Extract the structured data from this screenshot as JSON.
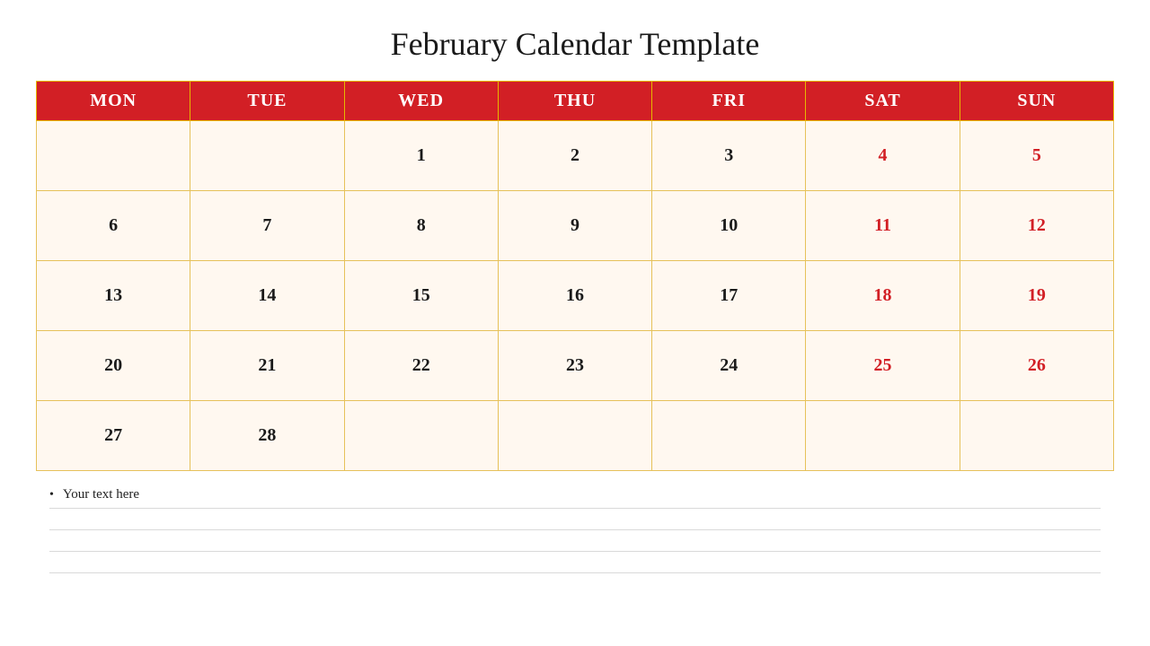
{
  "title": "February Calendar Template",
  "calendar": {
    "header_bg": "#d21f25",
    "header_fg": "#ffffff",
    "cell_bg": "#fff8f0",
    "border_color": "#e6c15a",
    "weekday_color": "#1a1a1a",
    "weekend_color": "#d21f25",
    "days": [
      "MON",
      "TUE",
      "WED",
      "THU",
      "FRI",
      "SAT",
      "SUN"
    ],
    "weeks": [
      [
        "",
        "",
        "1",
        "2",
        "3",
        "4",
        "5"
      ],
      [
        "6",
        "7",
        "8",
        "9",
        "10",
        "11",
        "12"
      ],
      [
        "13",
        "14",
        "15",
        "16",
        "17",
        "18",
        "19"
      ],
      [
        "20",
        "21",
        "22",
        "23",
        "24",
        "25",
        "26"
      ],
      [
        "27",
        "28",
        "",
        "",
        "",
        "",
        ""
      ]
    ]
  },
  "notes": {
    "bullet": "•",
    "placeholder": "Your text here",
    "extra_lines": 4
  }
}
